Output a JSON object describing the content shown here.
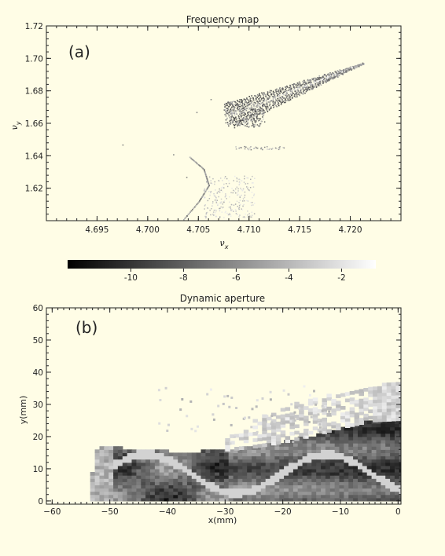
{
  "chart_data": [
    {
      "type": "scatter",
      "title": "Frequency map",
      "panel_label": "(a)",
      "xlabel": "ν",
      "xlabel_sub": "x",
      "ylabel": "ν",
      "ylabel_sub": "y",
      "xlim": [
        4.69,
        4.725
      ],
      "ylim": [
        1.6,
        1.72
      ],
      "xticks": [
        "4.695",
        "4.700",
        "4.705",
        "4.710",
        "4.715",
        "4.720"
      ],
      "yticks": [
        "1.62",
        "1.64",
        "1.66",
        "1.68",
        "1.70",
        "1.72"
      ],
      "regions": [
        {
          "name": "main-wedge",
          "outline": [
            [
              4.7075,
              1.672
            ],
            [
              4.7212,
              1.697
            ],
            [
              4.7085,
              1.658
            ]
          ],
          "shade": "dark"
        },
        {
          "name": "lower-cluster",
          "x_range": [
            4.7055,
            4.7105
          ],
          "y_range": [
            1.602,
            1.628
          ],
          "shade": "light"
        },
        {
          "name": "resonance-curve",
          "points": [
            [
              4.7035,
              1.601
            ],
            [
              4.705,
              1.612
            ],
            [
              4.706,
              1.622
            ],
            [
              4.7055,
              1.632
            ],
            [
              4.704,
              1.64
            ]
          ],
          "shade": "medium"
        },
        {
          "name": "horizontal-band",
          "x_range": [
            4.7085,
            4.7135
          ],
          "y": 1.645,
          "shade": "medium"
        }
      ]
    },
    {
      "type": "colorbar",
      "ticks": [
        "-10",
        "-8",
        "-6",
        "-4",
        "-2"
      ],
      "tick_values": [
        -10,
        -8,
        -6,
        -4,
        -2
      ],
      "range": [
        -12.4,
        -0.7
      ],
      "colors": [
        "#000000",
        "#ffffff"
      ]
    },
    {
      "type": "heatmap",
      "title": "Dynamic aperture",
      "panel_label": "(b)",
      "xlabel": "x(mm)",
      "ylabel": "y(mm)",
      "xlim": [
        -61,
        0.5
      ],
      "ylim": [
        -1,
        60
      ],
      "xticks": [
        "-60",
        "-50",
        "-40",
        "-30",
        "-20",
        "-10",
        "0"
      ],
      "yticks": [
        "0",
        "10",
        "20",
        "30",
        "40",
        "50",
        "60"
      ],
      "aperture_boundary": [
        [
          -54,
          0
        ],
        [
          -53,
          14
        ],
        [
          -52,
          17
        ],
        [
          -48,
          16
        ],
        [
          -45,
          16
        ],
        [
          -40,
          15
        ],
        [
          -35,
          15
        ],
        [
          -30,
          15.5
        ],
        [
          -25,
          16.5
        ],
        [
          -20,
          18
        ],
        [
          -15,
          20
        ],
        [
          -10,
          22.5
        ],
        [
          -5,
          24.5
        ],
        [
          0,
          25
        ]
      ],
      "light_region_top": [
        [
          -30,
          19
        ],
        [
          -25,
          25
        ],
        [
          -20,
          29
        ],
        [
          -15,
          32
        ],
        [
          -10,
          33
        ],
        [
          -5,
          35
        ],
        [
          0,
          37
        ]
      ]
    }
  ]
}
